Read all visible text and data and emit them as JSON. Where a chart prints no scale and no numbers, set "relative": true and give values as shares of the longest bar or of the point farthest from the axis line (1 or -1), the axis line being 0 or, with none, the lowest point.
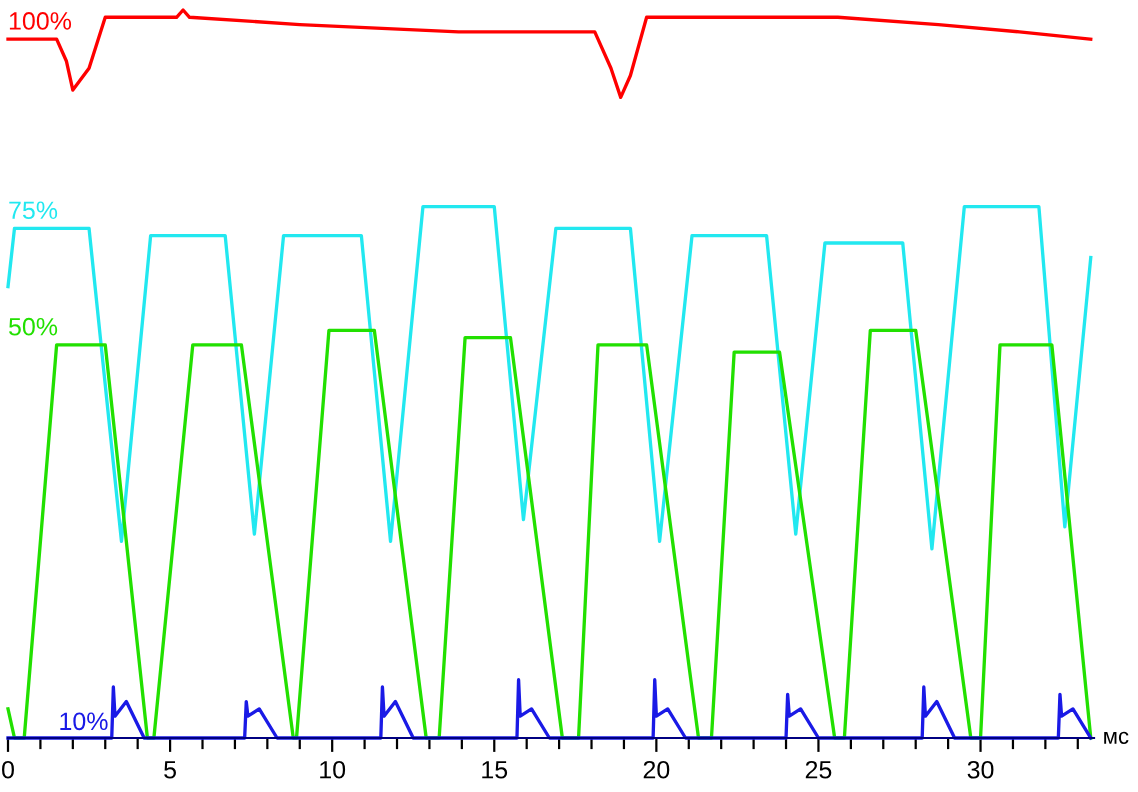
{
  "chart_data": {
    "type": "line",
    "relative": true,
    "xlabel": "мс",
    "xlim": [
      0,
      33.5
    ],
    "xticks": [
      0,
      {
        "value": 1,
        "label": null
      },
      {
        "value": 2,
        "label": null
      },
      {
        "value": 3,
        "label": null
      },
      {
        "value": 4,
        "label": null
      },
      5,
      {
        "value": 6,
        "label": null
      },
      {
        "value": 7,
        "label": null
      },
      {
        "value": 8,
        "label": null
      },
      {
        "value": 9,
        "label": null
      },
      10,
      {
        "value": 11,
        "label": null
      },
      {
        "value": 12,
        "label": null
      },
      {
        "value": 13,
        "label": null
      },
      {
        "value": 14,
        "label": null
      },
      15,
      {
        "value": 16,
        "label": null
      },
      {
        "value": 17,
        "label": null
      },
      {
        "value": 18,
        "label": null
      },
      {
        "value": 19,
        "label": null
      },
      20,
      {
        "value": 21,
        "label": null
      },
      {
        "value": 22,
        "label": null
      },
      {
        "value": 23,
        "label": null
      },
      {
        "value": 24,
        "label": null
      },
      25,
      {
        "value": 26,
        "label": null
      },
      {
        "value": 27,
        "label": null
      },
      {
        "value": 28,
        "label": null
      },
      {
        "value": 29,
        "label": null
      },
      30,
      {
        "value": 31,
        "label": null
      },
      {
        "value": 32,
        "label": null
      },
      {
        "value": 33,
        "label": null
      }
    ],
    "grid": false,
    "legend": false,
    "marker": "none",
    "line_style": "solid",
    "series": [
      {
        "name": "100%",
        "color": "#ff0000",
        "x": [
          0.0,
          1.5,
          1.8,
          2.0,
          2.5,
          3.0,
          5.2,
          5.4,
          5.6,
          9.0,
          13.9,
          15.8,
          17.6,
          18.1,
          18.6,
          18.9,
          19.2,
          19.7,
          21.3,
          25.6,
          28.7,
          31.2,
          33.4
        ],
        "values": [
          0.96,
          0.96,
          0.93,
          0.89,
          0.92,
          0.99,
          0.99,
          1.0,
          0.99,
          0.98,
          0.97,
          0.97,
          0.97,
          0.97,
          0.92,
          0.88,
          0.91,
          0.99,
          0.99,
          0.99,
          0.98,
          0.97,
          0.96
        ]
      },
      {
        "name": "75%",
        "color": "#22e8f0",
        "x": [
          0.0,
          0.2,
          2.5,
          3.5,
          4.4,
          6.7,
          7.6,
          8.5,
          10.9,
          11.8,
          12.8,
          15.0,
          15.9,
          16.9,
          19.2,
          20.1,
          21.1,
          23.4,
          24.3,
          25.2,
          27.6,
          28.5,
          29.5,
          31.8,
          32.6,
          33.4
        ],
        "values": [
          0.62,
          0.7,
          0.7,
          0.27,
          0.69,
          0.69,
          0.28,
          0.69,
          0.69,
          0.27,
          0.73,
          0.73,
          0.3,
          0.7,
          0.7,
          0.27,
          0.69,
          0.69,
          0.28,
          0.68,
          0.68,
          0.26,
          0.73,
          0.73,
          0.29,
          0.66
        ]
      },
      {
        "name": "50%",
        "color": "#22e000",
        "x": [
          0.0,
          0.2,
          0.5,
          1.5,
          3.0,
          4.3,
          4.5,
          5.7,
          7.2,
          8.8,
          8.9,
          9.9,
          11.3,
          12.9,
          13.3,
          14.1,
          15.5,
          17.1,
          17.6,
          18.2,
          19.7,
          21.3,
          21.7,
          22.4,
          23.8,
          25.5,
          25.8,
          26.6,
          28.0,
          29.7,
          30.0,
          30.6,
          32.2,
          33.4
        ],
        "values": [
          0.04,
          0,
          0,
          0.54,
          0.54,
          0,
          0,
          0.54,
          0.54,
          0,
          0,
          0.56,
          0.56,
          0,
          0,
          0.55,
          0.55,
          0,
          0,
          0.54,
          0.54,
          0,
          0,
          0.53,
          0.53,
          0,
          0,
          0.56,
          0.56,
          0,
          0,
          0.54,
          0.54,
          0
        ]
      },
      {
        "name": "10%",
        "color": "#1a1ae6",
        "x": [
          0.0,
          3.2,
          3.25,
          3.3,
          3.65,
          4.2,
          7.3,
          7.35,
          7.4,
          7.75,
          8.3,
          11.5,
          11.55,
          11.6,
          11.95,
          12.5,
          15.7,
          15.75,
          15.8,
          16.15,
          16.7,
          19.9,
          19.95,
          20.0,
          20.35,
          20.9,
          24.0,
          24.05,
          24.1,
          24.45,
          25.0,
          28.2,
          28.25,
          28.3,
          28.65,
          29.2,
          32.4,
          32.45,
          32.5,
          32.85,
          33.4
        ],
        "values": [
          0,
          0,
          0.07,
          0.03,
          0.05,
          0,
          0,
          0.05,
          0.03,
          0.04,
          0,
          0,
          0.07,
          0.03,
          0.05,
          0,
          0,
          0.08,
          0.03,
          0.04,
          0,
          0,
          0.08,
          0.03,
          0.04,
          0,
          0,
          0.06,
          0.03,
          0.04,
          0,
          0,
          0.07,
          0.03,
          0.05,
          0,
          0,
          0.06,
          0.03,
          0.04,
          0
        ]
      }
    ]
  }
}
